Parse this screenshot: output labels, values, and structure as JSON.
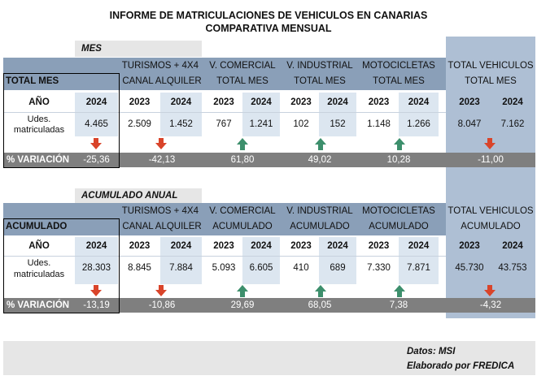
{
  "title": {
    "line1": "INFORME DE MATRICULACIONES DE VEHICULOS EN CANARIAS",
    "line2": "COMPARATIVA MENSUAL"
  },
  "colors": {
    "header_blue": "#8a9fb8",
    "total_column": "#aebfd4",
    "light_cell": "#dce6f0",
    "variation_bar": "#7f7f7f",
    "arrow_up": "#3d8f6c",
    "arrow_down": "#d9442a"
  },
  "monthly": {
    "section_label": "MES",
    "turismos_header": "TURISMOS + 4X4",
    "total_label": "TOTAL MES",
    "canal_label": "CANAL ALQUILER",
    "vcomercial": {
      "line1": "V. COMERCIAL",
      "line2": "TOTAL MES"
    },
    "vindustrial": {
      "line1": "V. INDUSTRIAL",
      "line2": "TOTAL MES"
    },
    "motos": {
      "line1": "MOTOCICLETAS",
      "line2": "TOTAL MES"
    },
    "total": {
      "line1": "TOTAL VEHICULOS",
      "line2": "TOTAL MES"
    },
    "ano_label": "AÑO",
    "udes_line1": "Udes.",
    "udes_line2": "matriculadas",
    "year_2023": "2023",
    "year_2024": "2024",
    "values": {
      "turismos_2024": "4.465",
      "canal_2023": "2.509",
      "canal_2024": "1.452",
      "vcom_2023": "767",
      "vcom_2024": "1.241",
      "vind_2023": "102",
      "vind_2024": "152",
      "moto_2023": "1.148",
      "moto_2024": "1.266",
      "total_2023": "8.047",
      "total_2024": "7.162"
    },
    "variation_label": "% VARIACIÓN",
    "variation": {
      "turismos": "-25,36",
      "canal": "-42,13",
      "vcom": "61,80",
      "vind": "49,02",
      "moto": "10,28",
      "total": "-11,00"
    },
    "trend": {
      "turismos": "down-arrow-icon",
      "canal": "down-arrow-icon",
      "vcom": "up-arrow-icon",
      "vind": "up-arrow-icon",
      "moto": "up-arrow-icon",
      "total": "down-arrow-icon"
    }
  },
  "annual": {
    "section_label": "ACUMULADO ANUAL",
    "turismos_header": "TURISMOS + 4X4",
    "total_label": "ACUMULADO",
    "canal_label": "CANAL ALQUILER",
    "vcomercial": {
      "line1": "V. COMERCIAL",
      "line2": "ACUMULADO"
    },
    "vindustrial": {
      "line1": "V. INDUSTRIAL",
      "line2": "ACUMULADO"
    },
    "motos": {
      "line1": "MOTOCICLETAS",
      "line2": "ACUMULADO"
    },
    "total": {
      "line1": "TOTAL VEHICULOS",
      "line2": "ACUMULADO"
    },
    "ano_label": "AÑO",
    "udes_line1": "Udes.",
    "udes_line2": "matriculadas",
    "year_2023": "2023",
    "year_2024": "2024",
    "values": {
      "turismos_2024": "28.303",
      "canal_2023": "8.845",
      "canal_2024": "7.884",
      "vcom_2023": "5.093",
      "vcom_2024": "6.605",
      "vind_2023": "410",
      "vind_2024": "689",
      "moto_2023": "7.330",
      "moto_2024": "7.871",
      "total_2023": "45.730",
      "total_2024": "43.753"
    },
    "variation_label": "% VARIACIÓN",
    "variation": {
      "turismos": "-13,19",
      "canal": "-10,86",
      "vcom": "29,69",
      "vind": "68,05",
      "moto": "7,38",
      "total": "-4,32"
    },
    "trend": {
      "turismos": "down-arrow-icon",
      "canal": "down-arrow-icon",
      "vcom": "up-arrow-icon",
      "vind": "up-arrow-icon",
      "moto": "up-arrow-icon",
      "total": "down-arrow-icon"
    }
  },
  "footer": {
    "datos": "Datos: MSI",
    "elaborado": "Elaborado por  FREDICA"
  }
}
